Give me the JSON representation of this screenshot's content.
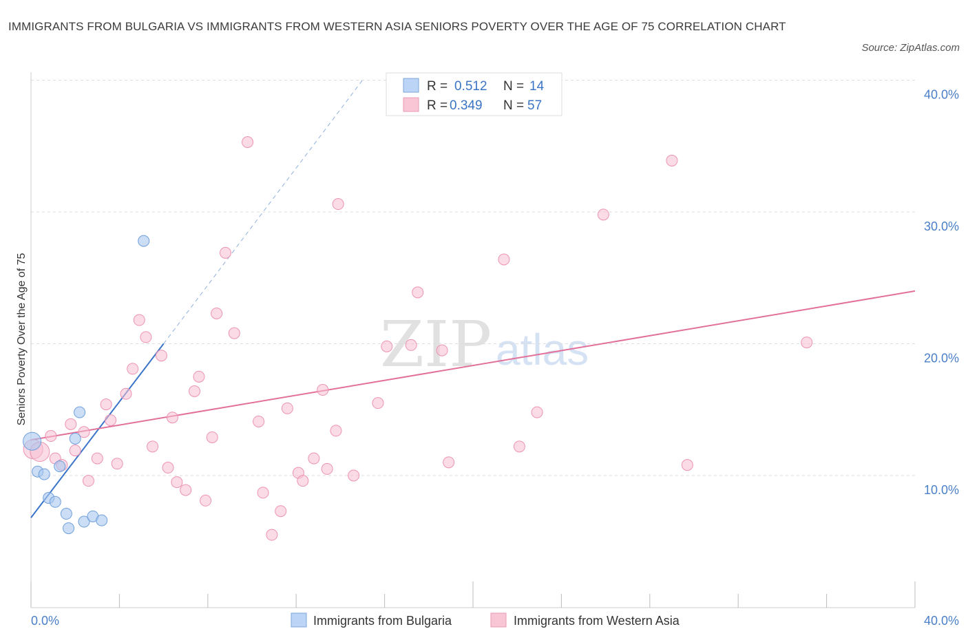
{
  "chart_data": {
    "type": "scatter",
    "title": "IMMIGRANTS FROM BULGARIA VS IMMIGRANTS FROM WESTERN ASIA SENIORS POVERTY OVER THE AGE OF 75 CORRELATION CHART",
    "source": "Source: ZipAtlas.com",
    "watermark_main": "ZIP",
    "watermark_sub": "atlas",
    "ylabel": "Seniors Poverty Over the Age of 75",
    "xlim": [
      0,
      40
    ],
    "ylim": [
      0,
      40
    ],
    "x_tick_labels": {
      "left": "0.0%",
      "right": "40.0%"
    },
    "y_ticks": [
      {
        "value": 10,
        "label": "10.0%"
      },
      {
        "value": 20,
        "label": "20.0%"
      },
      {
        "value": 30,
        "label": "30.0%"
      },
      {
        "value": 40,
        "label": "40.0%"
      }
    ],
    "colors": {
      "bulgaria_fill": "#a9c8f0",
      "bulgaria_stroke": "#6f9fdc",
      "bulgaria_line": "#3a74c9",
      "wasia_fill": "#f8c0d2",
      "wasia_stroke": "#ec92b2",
      "wasia_line": "#e2709a"
    },
    "legend": [
      {
        "r_label": "R =",
        "r_value": "0.512",
        "n_label": "N =",
        "n_value": "14"
      },
      {
        "r_label": "R =",
        "r_value": "0.349",
        "n_label": "N =",
        "n_value": "57"
      }
    ],
    "series": [
      {
        "name": "Immigrants from Bulgaria",
        "trend": {
          "x0": 0,
          "y0": 6.8,
          "x1": 6.0,
          "y1": 20.0,
          "dash_x1": 15.0,
          "dash_y1": 40.0
        },
        "points": [
          [
            0.05,
            12.6
          ],
          [
            0.3,
            10.3
          ],
          [
            0.6,
            10.1
          ],
          [
            0.8,
            8.3
          ],
          [
            1.1,
            8.0
          ],
          [
            1.3,
            10.7
          ],
          [
            1.6,
            7.1
          ],
          [
            1.7,
            6.0
          ],
          [
            2.0,
            12.8
          ],
          [
            2.2,
            14.8
          ],
          [
            2.4,
            6.5
          ],
          [
            2.8,
            6.9
          ],
          [
            3.2,
            6.6
          ],
          [
            5.1,
            27.8
          ]
        ]
      },
      {
        "name": "Immigrants from Western Asia",
        "trend": {
          "x0": 0,
          "y0": 12.7,
          "x1": 40.0,
          "y1": 24.0
        },
        "points": [
          [
            0.1,
            12.0
          ],
          [
            0.4,
            11.8
          ],
          [
            0.9,
            13.0
          ],
          [
            1.1,
            11.3
          ],
          [
            1.4,
            10.8
          ],
          [
            1.8,
            13.9
          ],
          [
            2.0,
            11.9
          ],
          [
            2.4,
            13.3
          ],
          [
            2.6,
            9.6
          ],
          [
            3.0,
            11.3
          ],
          [
            3.4,
            15.4
          ],
          [
            3.6,
            14.2
          ],
          [
            3.9,
            10.9
          ],
          [
            4.3,
            16.2
          ],
          [
            4.6,
            18.1
          ],
          [
            4.9,
            21.8
          ],
          [
            5.2,
            20.5
          ],
          [
            5.5,
            12.2
          ],
          [
            5.9,
            19.1
          ],
          [
            6.2,
            10.6
          ],
          [
            6.4,
            14.4
          ],
          [
            6.6,
            9.5
          ],
          [
            7.0,
            8.9
          ],
          [
            7.4,
            16.4
          ],
          [
            7.6,
            17.5
          ],
          [
            7.9,
            8.1
          ],
          [
            8.2,
            12.9
          ],
          [
            8.4,
            22.3
          ],
          [
            8.8,
            26.9
          ],
          [
            9.2,
            20.8
          ],
          [
            9.8,
            35.3
          ],
          [
            10.3,
            14.1
          ],
          [
            10.5,
            8.7
          ],
          [
            10.9,
            5.5
          ],
          [
            11.3,
            7.3
          ],
          [
            11.6,
            15.1
          ],
          [
            12.1,
            10.2
          ],
          [
            12.3,
            9.6
          ],
          [
            12.8,
            11.3
          ],
          [
            13.2,
            16.5
          ],
          [
            13.4,
            10.5
          ],
          [
            13.8,
            13.4
          ],
          [
            13.9,
            30.6
          ],
          [
            14.6,
            10.0
          ],
          [
            15.7,
            15.5
          ],
          [
            16.1,
            19.8
          ],
          [
            17.2,
            19.9
          ],
          [
            17.5,
            23.9
          ],
          [
            18.6,
            19.5
          ],
          [
            18.9,
            11.0
          ],
          [
            21.4,
            26.4
          ],
          [
            22.1,
            12.2
          ],
          [
            22.9,
            14.8
          ],
          [
            25.9,
            29.8
          ],
          [
            29.0,
            33.9
          ],
          [
            29.7,
            10.8
          ],
          [
            35.1,
            20.1
          ]
        ]
      }
    ]
  }
}
